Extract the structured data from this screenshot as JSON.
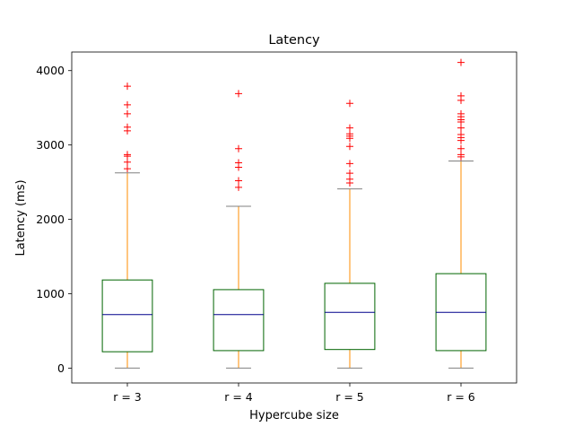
{
  "chart_data": {
    "type": "box",
    "title": "Latency",
    "xlabel": "Hypercube size",
    "ylabel": "Latency (ms)",
    "ylim": [
      -200,
      4250
    ],
    "yticks": [
      0,
      1000,
      2000,
      3000,
      4000
    ],
    "grid": false,
    "categories": [
      "r = 3",
      "r = 4",
      "r = 5",
      "r = 6"
    ],
    "boxes": [
      {
        "label": "r = 3",
        "whisker_low": 0,
        "q1": 220,
        "median": 720,
        "q3": 1185,
        "whisker_high": 2625,
        "outliers": [
          2680,
          2770,
          2850,
          2870,
          3190,
          3240,
          3420,
          3540,
          3790
        ]
      },
      {
        "label": "r = 4",
        "whisker_low": 0,
        "q1": 235,
        "median": 720,
        "q3": 1055,
        "whisker_high": 2175,
        "outliers": [
          2430,
          2520,
          2700,
          2760,
          2950,
          3690
        ]
      },
      {
        "label": "r = 5",
        "whisker_low": 0,
        "q1": 250,
        "median": 750,
        "q3": 1140,
        "whisker_high": 2410,
        "outliers": [
          2490,
          2540,
          2620,
          2750,
          2980,
          3090,
          3120,
          3150,
          3230,
          3560
        ]
      },
      {
        "label": "r = 6",
        "whisker_low": 0,
        "q1": 235,
        "median": 750,
        "q3": 1270,
        "whisker_high": 2785,
        "outliers": [
          2840,
          2870,
          2950,
          3060,
          3100,
          3140,
          3230,
          3310,
          3340,
          3380,
          3420,
          3600,
          3660,
          4110
        ]
      }
    ],
    "colors": {
      "box": "#006400",
      "median": "#00008b",
      "whisker": "#ff8c00",
      "cap": "#808080",
      "outlier": "#ff0000",
      "axes": "#000000"
    }
  }
}
